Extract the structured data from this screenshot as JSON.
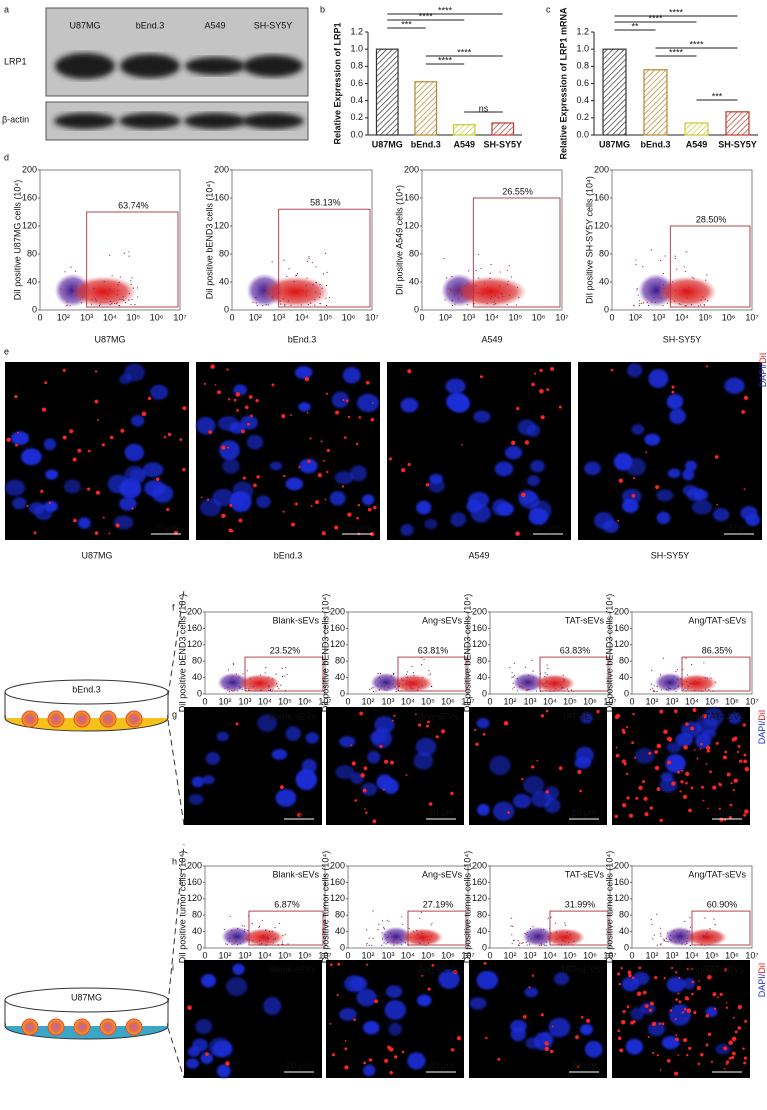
{
  "blot": {
    "letter": "a",
    "lanes": [
      "U87MG",
      "bEnd.3",
      "A549",
      "SH-SY5Y"
    ],
    "rows": [
      "LRP1",
      "β-actin"
    ]
  },
  "chart_data": [
    {
      "type": "bar",
      "letter": "b",
      "y_label": "Relative Expression of LRP1",
      "categories": [
        "U87MG",
        "bEnd.3",
        "A549",
        "SH-SY5Y"
      ],
      "values": [
        1.0,
        0.62,
        0.12,
        0.14
      ],
      "colors": [
        "#333333",
        "#b8862e",
        "#c9c934",
        "#c0392b"
      ],
      "ylim": [
        0,
        1.2
      ],
      "yticks": [
        {
          "value": 0,
          "label": "0.0"
        },
        0.2,
        0.4,
        0.6,
        0.8,
        {
          "value": 1,
          "label": "1.0"
        },
        1.2
      ],
      "significance": [
        "****",
        "****",
        "***",
        "****",
        "****",
        "ns"
      ]
    },
    {
      "type": "bar",
      "letter": "c",
      "y_label": "Relative Expression of LRP1 mRNA",
      "categories": [
        "U87MG",
        "bEnd.3",
        "A549",
        "SH-SY5Y"
      ],
      "values": [
        1.0,
        0.76,
        0.14,
        0.27
      ],
      "colors": [
        "#333333",
        "#b8862e",
        "#c9c934",
        "#c0392b"
      ],
      "ylim": [
        0,
        1.2
      ],
      "yticks": [
        {
          "value": 0,
          "label": "0.0"
        },
        0.2,
        0.4,
        0.6,
        0.8,
        {
          "value": 1,
          "label": "1.0"
        },
        1.2
      ],
      "significance": [
        "****",
        "****",
        "**",
        "****",
        "****",
        "***"
      ]
    }
  ],
  "flow_d": {
    "letter": "d",
    "xtick_labels": [
      "0",
      "10²",
      "10³",
      "10⁴",
      "10⁵",
      "10⁶",
      "10⁷"
    ],
    "yticks": [
      0,
      40,
      80,
      120,
      160,
      200
    ],
    "plots": [
      {
        "y_label": "DiI positive U87MG cells (10⁴)",
        "gate": "63.74%",
        "name": "U87MG"
      },
      {
        "y_label": "DiI positive bEND3 cells (10⁴)",
        "gate": "58.13%",
        "name": "bEnd.3"
      },
      {
        "y_label": "DiI positive A549 cells (10⁴)",
        "gate": "26.55%",
        "name": "A549"
      },
      {
        "y_label": "DiI positive SH-SY5Y cells (10⁴)",
        "gate": "28.50%",
        "name": "SH-SY5Y"
      }
    ]
  },
  "images_e": {
    "letter": "e",
    "stain": "DAPI/DiI",
    "scale": "20 μm",
    "names": [
      "U87MG",
      "bEnd.3",
      "A549",
      "SH-SY5Y"
    ]
  },
  "flow_f": {
    "letter": "f",
    "dish": "bEnd.3",
    "y_label": "DiI positive bEND3 cells (10⁴)",
    "xtick_labels": [
      "0",
      "10²",
      "10³",
      "10⁴",
      "10⁵",
      "10⁶",
      "10⁷"
    ],
    "yticks": [
      0,
      40,
      80,
      120,
      160,
      200
    ],
    "plots": [
      {
        "title": "Blank-sEVs",
        "gate": "23.52%"
      },
      {
        "title": "Ang-sEVs",
        "gate": "63.81%"
      },
      {
        "title": "TAT-sEVs",
        "gate": "63.83%"
      },
      {
        "title": "Ang/TAT-sEVs",
        "gate": "86.35%"
      }
    ]
  },
  "images_g": {
    "letter": "g",
    "stain": "DAPI/DiI",
    "scale": "20 μm",
    "labels": [
      "Blank-sEVs",
      "Ang-sEVs",
      "TAT-sEVs",
      "Ang/TAT-sEVs"
    ]
  },
  "flow_h": {
    "letter": "h",
    "dish": "U87MG",
    "y_label": "DiI positive tumor cells (10⁴)",
    "xtick_labels": [
      "0",
      "10²",
      "10³",
      "10⁴",
      "10⁵",
      "10⁶",
      "10⁷"
    ],
    "yticks": [
      0,
      40,
      80,
      120,
      160,
      200
    ],
    "plots": [
      {
        "title": "Blank-sEVs",
        "gate": "6.87%"
      },
      {
        "title": "Ang-sEVs",
        "gate": "27.19%"
      },
      {
        "title": "TAT-sEVs",
        "gate": "31.99%"
      },
      {
        "title": "Ang/TAT-sEVs",
        "gate": "60.90%"
      }
    ]
  },
  "images_i": {
    "letter": "i",
    "stain": "DAPI/DiI",
    "scale": "20 μm",
    "labels": [
      "Blank-sEVs",
      "Ang-sEVs",
      "TAT-sEVS",
      "Ang/TAT-sEVs"
    ]
  }
}
